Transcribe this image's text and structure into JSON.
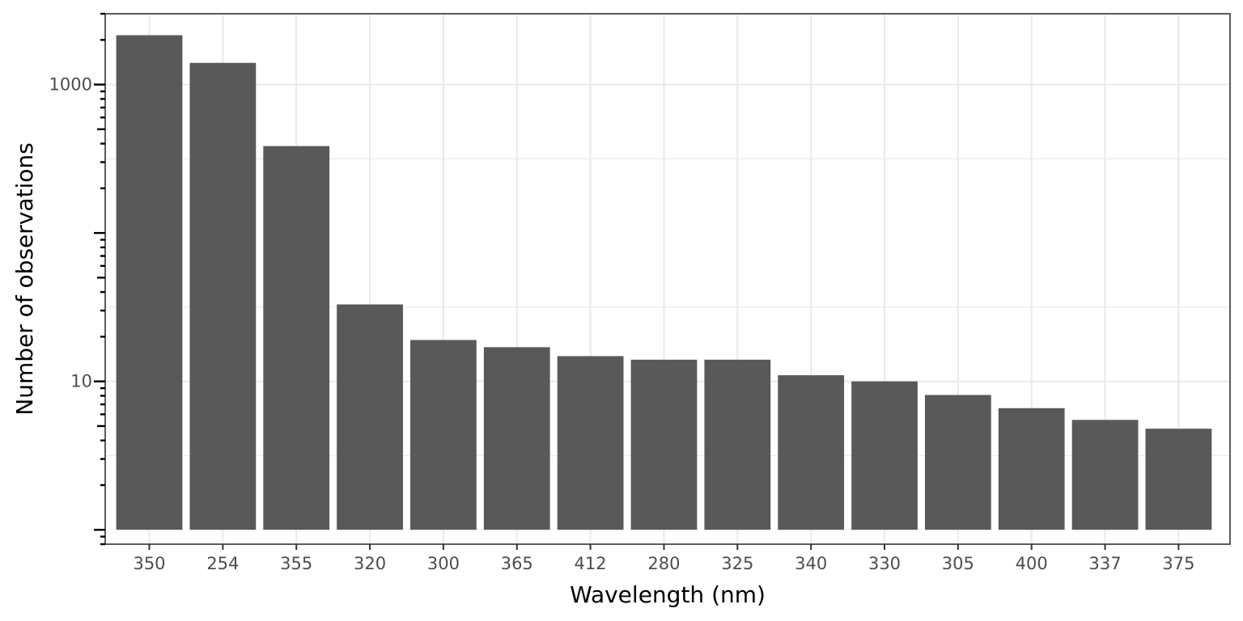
{
  "chart_data": {
    "type": "bar",
    "title": "",
    "xlabel": "Wavelength (nm)",
    "ylabel": "Number of observations",
    "yscale": "log10",
    "ylim": [
      0.8,
      3000
    ],
    "y_ticks": [
      10,
      1000
    ],
    "grid": true,
    "legend": "none",
    "bar_color": "#595959",
    "grid_color": "#ebebeb",
    "categories": [
      "350",
      "254",
      "355",
      "320",
      "300",
      "365",
      "412",
      "280",
      "325",
      "340",
      "330",
      "305",
      "400",
      "337",
      "375"
    ],
    "values": [
      2150,
      1400,
      385,
      33,
      19,
      17,
      14.8,
      14,
      14,
      11,
      10,
      8.1,
      6.6,
      5.5,
      4.8
    ]
  }
}
